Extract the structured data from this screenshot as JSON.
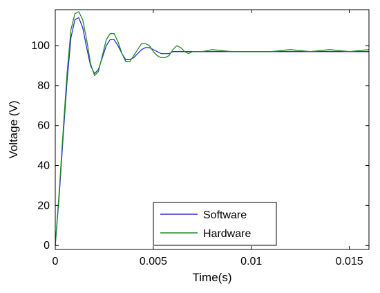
{
  "chart_data": {
    "type": "line",
    "title": "",
    "xlabel": "Time(s)",
    "ylabel": "Voltage (V)",
    "xlim": [
      0,
      0.016
    ],
    "ylim": [
      -2,
      118
    ],
    "xticks": [
      0,
      0.005,
      0.01,
      0.015
    ],
    "xtick_labels": [
      "0",
      "0.005",
      "0.01",
      "0.015"
    ],
    "yticks": [
      0,
      20,
      40,
      60,
      80,
      100
    ],
    "ytick_labels": [
      "0",
      "20",
      "40",
      "60",
      "80",
      "100"
    ],
    "grid": false,
    "legend_position": "bottom-center",
    "series": [
      {
        "name": "Software",
        "color": "#2b2bd6",
        "x": [
          0,
          0.0002,
          0.0004,
          0.0006,
          0.0008,
          0.001,
          0.0012,
          0.0014,
          0.0016,
          0.0018,
          0.002,
          0.0022,
          0.0024,
          0.0026,
          0.0028,
          0.003,
          0.0032,
          0.0034,
          0.0036,
          0.0038,
          0.004,
          0.0042,
          0.0044,
          0.0046,
          0.0048,
          0.005,
          0.0052,
          0.0054,
          0.0056,
          0.0058,
          0.006,
          0.0062,
          0.0064,
          0.0066,
          0.0068,
          0.007,
          0.0075,
          0.008,
          0.009,
          0.01,
          0.011,
          0.012,
          0.013,
          0.014,
          0.015,
          0.016
        ],
        "y": [
          0,
          25,
          54,
          82,
          104,
          113,
          114,
          109,
          99,
          90,
          86,
          88,
          94,
          100,
          103,
          103,
          100,
          96,
          93,
          93,
          94,
          96,
          98,
          99,
          99,
          98,
          97,
          96,
          96,
          96,
          97,
          97,
          97,
          97,
          97,
          97,
          97,
          97,
          97,
          97,
          97,
          97,
          97,
          97,
          97,
          97
        ]
      },
      {
        "name": "Hardware",
        "color": "#1f8a1f",
        "x": [
          0,
          0.0002,
          0.0004,
          0.0006,
          0.0008,
          0.001,
          0.0012,
          0.0014,
          0.0016,
          0.0018,
          0.002,
          0.0022,
          0.0024,
          0.0026,
          0.0028,
          0.003,
          0.0032,
          0.0034,
          0.0036,
          0.0038,
          0.004,
          0.0042,
          0.0044,
          0.0046,
          0.0048,
          0.005,
          0.0052,
          0.0054,
          0.0056,
          0.0058,
          0.006,
          0.0062,
          0.0064,
          0.0066,
          0.0068,
          0.007,
          0.0075,
          0.008,
          0.009,
          0.01,
          0.011,
          0.012,
          0.013,
          0.014,
          0.015,
          0.016
        ],
        "y": [
          0,
          27,
          57,
          86,
          108,
          116,
          117,
          113,
          103,
          91,
          85,
          87,
          95,
          103,
          106,
          106,
          102,
          96,
          92,
          92,
          95,
          98,
          101,
          101,
          100,
          97,
          95,
          94,
          94,
          95,
          98,
          100,
          99,
          97,
          96,
          97,
          97,
          98,
          97,
          97,
          97,
          98,
          97,
          98,
          97,
          98
        ]
      }
    ]
  }
}
